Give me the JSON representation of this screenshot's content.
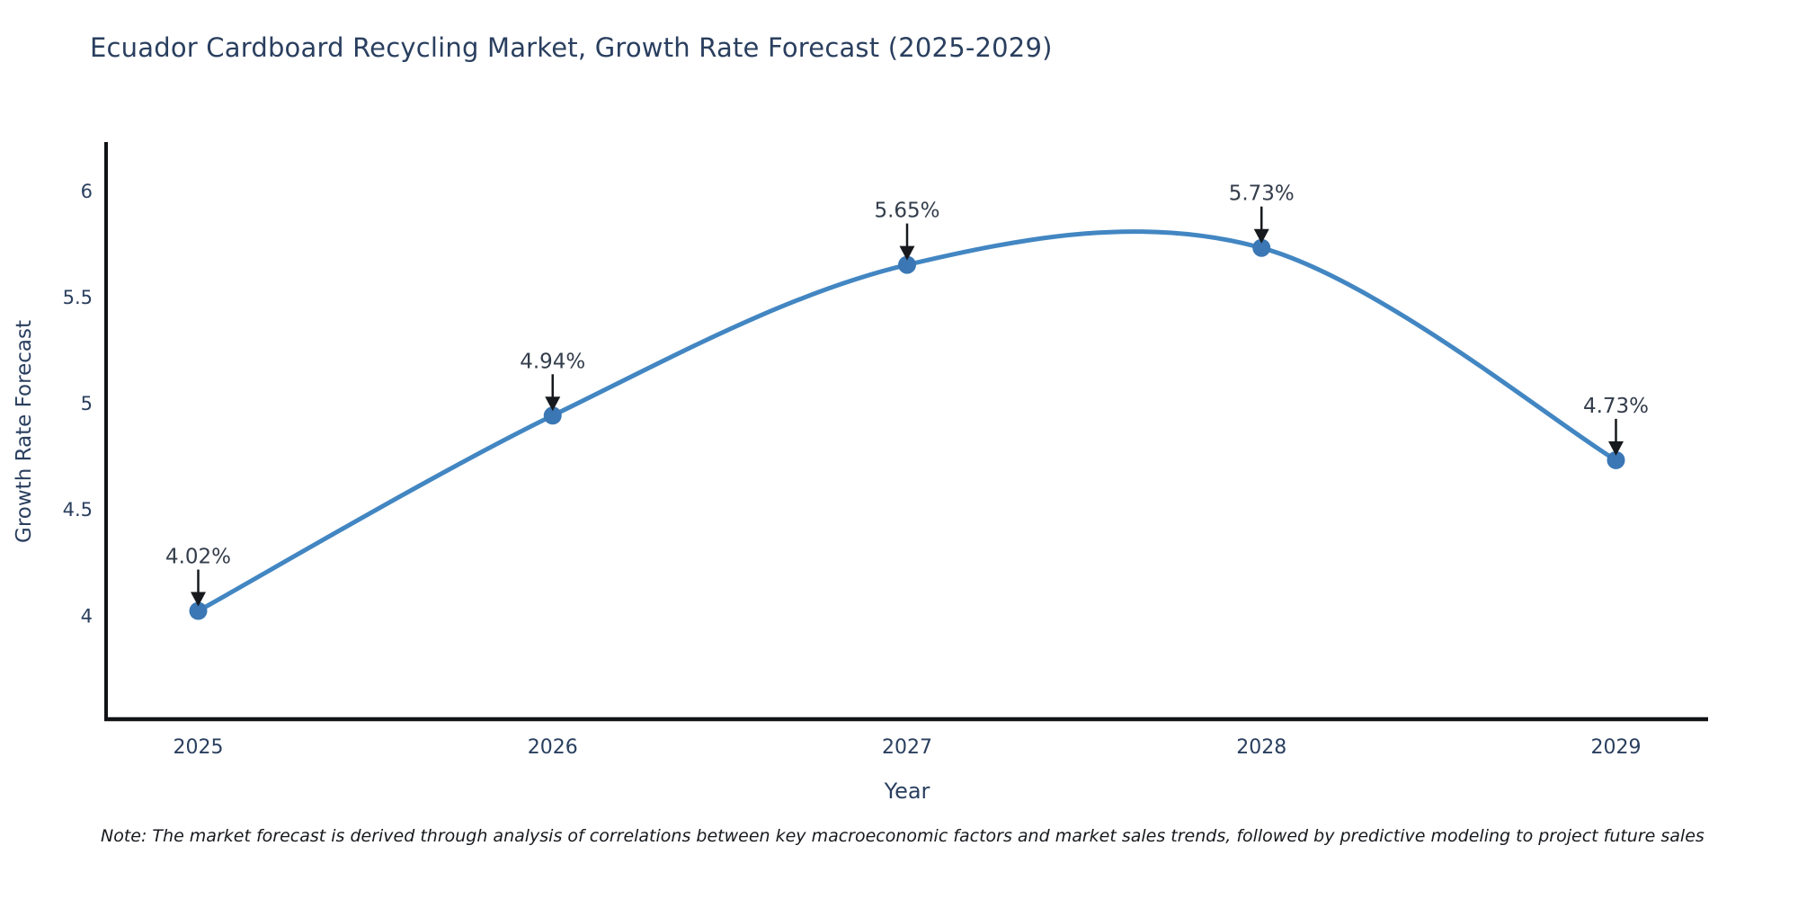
{
  "title": "Ecuador Cardboard Recycling Market, Growth Rate Forecast (2025-2029)",
  "note": "Note: The market forecast is derived through analysis of correlations between key macroeconomic factors and market sales trends, followed by predictive modeling to project future sales",
  "chart_data": {
    "type": "line",
    "title": "Ecuador Cardboard Recycling Market, Growth Rate Forecast (2025-2029)",
    "xlabel": "Year",
    "ylabel": "Growth Rate Forecast",
    "x": [
      2025,
      2026,
      2027,
      2028,
      2029
    ],
    "values": [
      4.02,
      4.94,
      5.65,
      5.73,
      4.73
    ],
    "point_labels": [
      "4.02%",
      "4.94%",
      "5.65%",
      "5.73%",
      "4.73%"
    ],
    "x_tick_labels": [
      "2025",
      "2026",
      "2027",
      "2028",
      "2029"
    ],
    "y_ticks": [
      4,
      4.5,
      5,
      5.5,
      6
    ],
    "y_tick_labels": [
      "4",
      "4.5",
      "5",
      "5.5",
      "6"
    ],
    "xlim": [
      2024.74,
      2029.26
    ],
    "ylim": [
      3.51,
      6.22
    ],
    "line_shape": "spline",
    "grid": false,
    "legend": "none",
    "colors": {
      "line": "#4286c2",
      "marker": "#3a77b4",
      "arrow": "#16191d",
      "axis": "#111316",
      "axis_text": "#2a3f5f",
      "annotation_text": "#333d4b"
    }
  }
}
